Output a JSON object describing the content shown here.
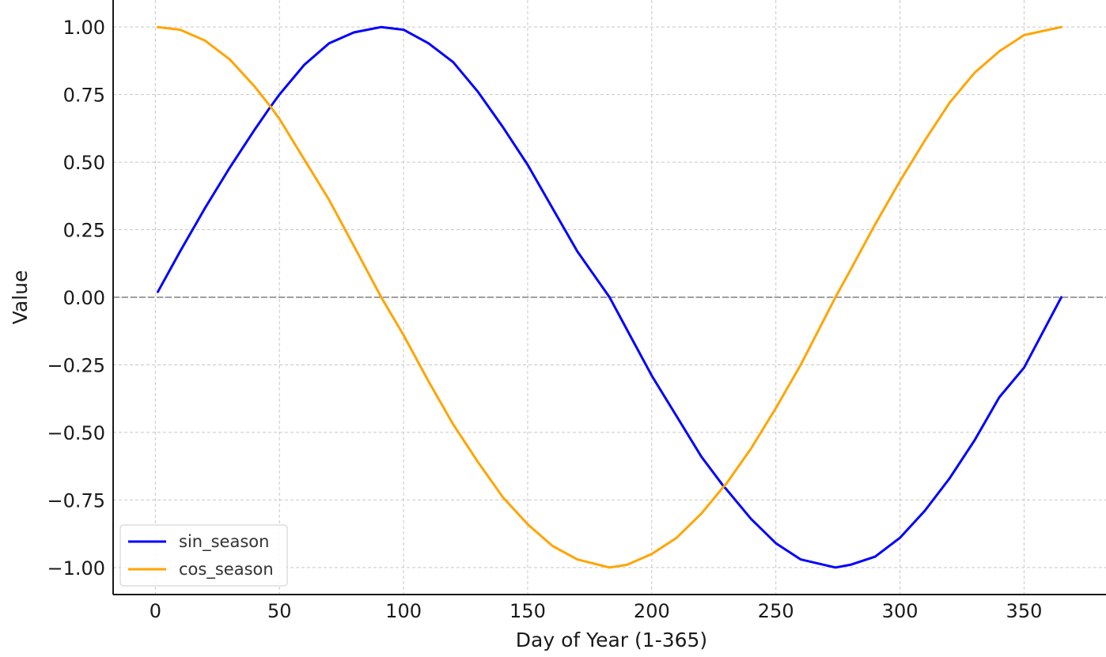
{
  "chart_data": {
    "type": "line",
    "title": "",
    "xlabel": "Day of Year (1-365)",
    "ylabel": "Value",
    "xlim": [
      -17,
      383
    ],
    "ylim": [
      -1.1,
      1.1
    ],
    "xticks": [
      0,
      50,
      100,
      150,
      200,
      250,
      300,
      350
    ],
    "xtick_labels": [
      "0",
      "50",
      "100",
      "150",
      "200",
      "250",
      "300",
      "350"
    ],
    "yticks": [
      1.0,
      0.75,
      0.5,
      0.25,
      0.0,
      -0.25,
      -0.5,
      -0.75,
      -1.0
    ],
    "ytick_labels": [
      "1.00",
      "0.75",
      "0.50",
      "0.25",
      "0.00",
      "−0.25",
      "−0.50",
      "−0.75",
      "−1.00"
    ],
    "grid": true,
    "zero_line": 0,
    "legend_position": "lower-left",
    "x": [
      1,
      10,
      20,
      30,
      40,
      46,
      50,
      60,
      70,
      80,
      91,
      100,
      110,
      120,
      130,
      140,
      150,
      160,
      170,
      183,
      190,
      200,
      210,
      220,
      229,
      230,
      240,
      250,
      260,
      274,
      280,
      290,
      300,
      310,
      320,
      330,
      340,
      350,
      365
    ],
    "series": [
      {
        "name": "sin_season",
        "color": "#0000ff",
        "values": [
          0.02,
          0.17,
          0.33,
          0.48,
          0.62,
          0.7,
          0.75,
          0.86,
          0.94,
          0.98,
          1.0,
          0.99,
          0.94,
          0.87,
          0.76,
          0.63,
          0.49,
          0.33,
          0.17,
          0.0,
          -0.12,
          -0.29,
          -0.44,
          -0.59,
          -0.7,
          -0.71,
          -0.82,
          -0.91,
          -0.97,
          -1.0,
          -0.99,
          -0.96,
          -0.89,
          -0.79,
          -0.67,
          -0.53,
          -0.37,
          -0.26,
          0.0
        ]
      },
      {
        "name": "cos_season",
        "color": "#ffa500",
        "values": [
          1.0,
          0.99,
          0.95,
          0.88,
          0.78,
          0.71,
          0.66,
          0.51,
          0.36,
          0.19,
          0.0,
          -0.14,
          -0.31,
          -0.47,
          -0.61,
          -0.74,
          -0.84,
          -0.92,
          -0.97,
          -1.0,
          -0.99,
          -0.95,
          -0.89,
          -0.8,
          -0.7,
          -0.69,
          -0.56,
          -0.41,
          -0.25,
          0.0,
          0.1,
          0.27,
          0.43,
          0.58,
          0.72,
          0.83,
          0.91,
          0.97,
          1.0
        ]
      }
    ]
  },
  "theme": {
    "grid_color": "#c8c8c8",
    "axis_color": "#1a1a1a",
    "zero_line_color": "#808080"
  }
}
